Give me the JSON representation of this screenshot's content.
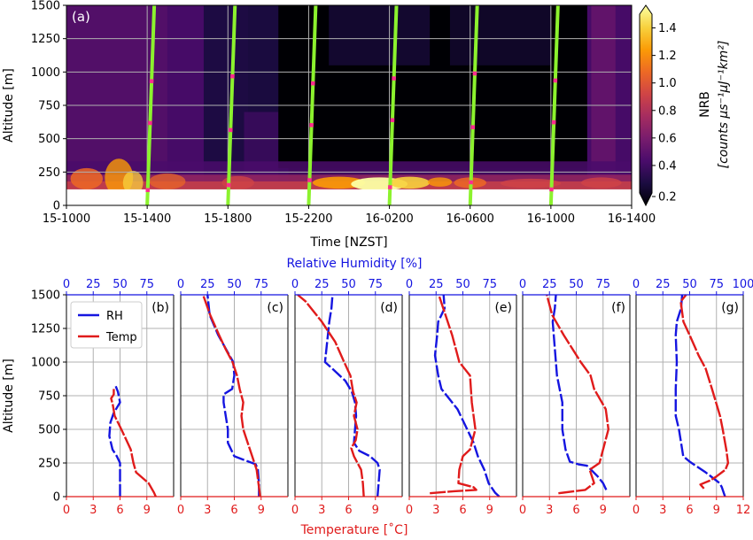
{
  "chart_data": [
    {
      "type": "heatmap",
      "panel_label": "(a)",
      "xlabel": "Time [NZST]",
      "ylabel": "Altitude [m]",
      "x_tick_labels": [
        "15-1000",
        "15-1400",
        "15-1800",
        "15-2200",
        "16-0200",
        "16-0600",
        "16-1000",
        "16-1400"
      ],
      "x_range_hours": [
        0,
        28
      ],
      "y_ticks": [
        0,
        250,
        500,
        750,
        1000,
        1250,
        1500
      ],
      "ylim": [
        0,
        1500
      ],
      "colorbar": {
        "label": "NRB",
        "units": "[counts μs⁻¹μJ⁻¹km²]",
        "ticks": [
          "0.2",
          "0.4",
          "0.6",
          "0.8",
          "1.0",
          "1.2",
          "1.4"
        ],
        "range": [
          0.2,
          1.5
        ],
        "colors": [
          "#000004",
          "#1b0c41",
          "#4a0c6b",
          "#781c6d",
          "#a52c60",
          "#cf4446",
          "#ed6925",
          "#fb9b06",
          "#f7d13d",
          "#fcffa4"
        ]
      },
      "grid": true,
      "radiosonde_launch_hours": [
        4,
        8,
        12,
        16,
        20,
        24
      ],
      "track_colors": {
        "track": "#8cf22e",
        "marker": "#ff2d8f"
      }
    },
    {
      "type": "line",
      "panel_labels": [
        "(b)",
        "(c)",
        "(d)",
        "(e)",
        "(f)",
        "(g)"
      ],
      "top_axis_label": "Relative Humidity [%]",
      "top_axis_color": "#1515e0",
      "bottom_axis_label": "Temperature [˚C]",
      "bottom_axis_color": "#e01b1b",
      "ylabel": "Altitude [m]",
      "y_ticks": [
        0,
        250,
        500,
        750,
        1000,
        1250,
        1500
      ],
      "ylim": [
        0,
        1500
      ],
      "temp_xlim": [
        0,
        12
      ],
      "rh_xlim": [
        0,
        100
      ],
      "temp_tick_labels": [
        [
          "0",
          "3",
          "6",
          "9"
        ],
        [
          "0",
          "3",
          "6",
          "9"
        ],
        [
          "0",
          "3",
          "6",
          "9"
        ],
        [
          "0",
          "3",
          "6",
          "9"
        ],
        [
          "0",
          "3",
          "6",
          "9"
        ],
        [
          "0",
          "3",
          "6",
          "9",
          "12"
        ]
      ],
      "rh_tick_labels": [
        [
          "0",
          "25",
          "50",
          "75"
        ],
        [
          "0",
          "25",
          "50",
          "75"
        ],
        [
          "0",
          "25",
          "50",
          "75"
        ],
        [
          "0",
          "25",
          "50",
          "75"
        ],
        [
          "0",
          "25",
          "50",
          "75"
        ],
        [
          "0",
          "25",
          "50",
          "75",
          "100"
        ]
      ],
      "legend": {
        "position": "top-left",
        "entries": [
          {
            "name": "RH",
            "color": "#1515e0"
          },
          {
            "name": "Temp",
            "color": "#e01b1b"
          }
        ]
      },
      "profiles": [
        {
          "label": "(b)",
          "rh": [
            [
              50,
              0
            ],
            [
              50,
              100
            ],
            [
              50,
              250
            ],
            [
              47,
              300
            ],
            [
              43,
              350
            ],
            [
              40,
              450
            ],
            [
              41,
              550
            ],
            [
              44,
              620
            ],
            [
              50,
              700
            ],
            [
              48,
              780
            ],
            [
              46,
              820
            ]
          ],
          "temp": [
            [
              10,
              0
            ],
            [
              9.8,
              30
            ],
            [
              9.2,
              100
            ],
            [
              7.8,
              180
            ],
            [
              7.5,
              250
            ],
            [
              7.2,
              350
            ],
            [
              6.5,
              450
            ],
            [
              6,
              520
            ],
            [
              5.4,
              600
            ],
            [
              5.2,
              680
            ],
            [
              5,
              730
            ],
            [
              5.3,
              760
            ],
            [
              5.3,
              800
            ]
          ]
        },
        {
          "label": "(c)",
          "rh": [
            [
              73,
              0
            ],
            [
              73,
              100
            ],
            [
              72,
              200
            ],
            [
              70,
              240
            ],
            [
              60,
              270
            ],
            [
              50,
              300
            ],
            [
              44,
              400
            ],
            [
              44,
              500
            ],
            [
              42,
              600
            ],
            [
              40,
              700
            ],
            [
              40,
              760
            ],
            [
              48,
              800
            ],
            [
              50,
              900
            ],
            [
              49,
              1000
            ],
            [
              42,
              1100
            ],
            [
              35,
              1200
            ],
            [
              27,
              1350
            ],
            [
              25,
              1500
            ]
          ],
          "temp": [
            [
              8.9,
              0
            ],
            [
              8.7,
              100
            ],
            [
              8.5,
              200
            ],
            [
              8,
              300
            ],
            [
              7.5,
              400
            ],
            [
              7,
              500
            ],
            [
              6.8,
              600
            ],
            [
              7,
              700
            ],
            [
              6.6,
              800
            ],
            [
              6.3,
              900
            ],
            [
              5.8,
              1000
            ],
            [
              5,
              1100
            ],
            [
              4.3,
              1200
            ],
            [
              3.3,
              1350
            ],
            [
              2.5,
              1500
            ]
          ]
        },
        {
          "label": "(d)",
          "rh": [
            [
              77,
              0
            ],
            [
              78,
              100
            ],
            [
              79,
              200
            ],
            [
              77,
              250
            ],
            [
              70,
              300
            ],
            [
              60,
              340
            ],
            [
              55,
              400
            ],
            [
              56,
              500
            ],
            [
              57,
              600
            ],
            [
              56,
              700
            ],
            [
              53,
              780
            ],
            [
              47,
              860
            ],
            [
              35,
              950
            ],
            [
              28,
              1000
            ],
            [
              30,
              1150
            ],
            [
              32,
              1300
            ],
            [
              34,
              1400
            ],
            [
              35,
              1500
            ]
          ],
          "temp": [
            [
              7.7,
              0
            ],
            [
              7.6,
              100
            ],
            [
              7.4,
              200
            ],
            [
              6.6,
              300
            ],
            [
              6.3,
              360
            ],
            [
              6.8,
              420
            ],
            [
              7,
              500
            ],
            [
              6.6,
              600
            ],
            [
              6.9,
              700
            ],
            [
              6.5,
              780
            ],
            [
              6.2,
              900
            ],
            [
              5.5,
              1000
            ],
            [
              4.5,
              1150
            ],
            [
              3,
              1300
            ],
            [
              1.2,
              1450
            ],
            [
              0.3,
              1500
            ]
          ]
        },
        {
          "label": "(e)",
          "rh": [
            [
              84,
              0
            ],
            [
              80,
              30
            ],
            [
              74,
              100
            ],
            [
              70,
              200
            ],
            [
              64,
              300
            ],
            [
              60,
              400
            ],
            [
              54,
              500
            ],
            [
              45,
              650
            ],
            [
              30,
              800
            ],
            [
              27,
              900
            ],
            [
              24,
              1050
            ],
            [
              26,
              1200
            ],
            [
              27,
              1300
            ],
            [
              33,
              1400
            ],
            [
              32,
              1500
            ]
          ],
          "temp": [
            [
              2.3,
              25
            ],
            [
              5,
              40
            ],
            [
              7.5,
              50
            ],
            [
              7.2,
              70
            ],
            [
              5.5,
              100
            ],
            [
              5.6,
              200
            ],
            [
              6,
              300
            ],
            [
              6.8,
              350
            ],
            [
              7,
              400
            ],
            [
              7.4,
              500
            ],
            [
              7,
              700
            ],
            [
              6.8,
              900
            ],
            [
              5.6,
              1000
            ],
            [
              4.8,
              1200
            ],
            [
              3.3,
              1500
            ]
          ]
        },
        {
          "label": "(f)",
          "rh": [
            [
              78,
              50
            ],
            [
              75,
              100
            ],
            [
              70,
              150
            ],
            [
              60,
              230
            ],
            [
              52,
              240
            ],
            [
              44,
              260
            ],
            [
              40,
              350
            ],
            [
              37,
              500
            ],
            [
              37,
              700
            ],
            [
              32,
              900
            ],
            [
              30,
              1100
            ],
            [
              28,
              1300
            ],
            [
              30,
              1400
            ],
            [
              31,
              1500
            ]
          ],
          "temp": [
            [
              4,
              25
            ],
            [
              7,
              50
            ],
            [
              8,
              100
            ],
            [
              7.5,
              200
            ],
            [
              8.6,
              250
            ],
            [
              9,
              350
            ],
            [
              9.6,
              500
            ],
            [
              9.3,
              650
            ],
            [
              8,
              800
            ],
            [
              7.6,
              900
            ],
            [
              6.5,
              1000
            ],
            [
              4.6,
              1200
            ],
            [
              3.3,
              1350
            ],
            [
              2.7,
              1500
            ]
          ]
        },
        {
          "label": "(g)",
          "rh": [
            [
              83,
              0
            ],
            [
              80,
              70
            ],
            [
              78,
              100
            ],
            [
              65,
              180
            ],
            [
              50,
              260
            ],
            [
              44,
              300
            ],
            [
              40,
              500
            ],
            [
              37,
              600
            ],
            [
              37,
              800
            ],
            [
              38,
              1000
            ],
            [
              37,
              1200
            ],
            [
              38,
              1300
            ],
            [
              42,
              1400
            ],
            [
              43,
              1500
            ]
          ],
          "temp": [
            [
              7.6,
              60
            ],
            [
              7.2,
              90
            ],
            [
              8.3,
              120
            ],
            [
              9,
              150
            ],
            [
              10,
              200
            ],
            [
              10.3,
              250
            ],
            [
              10.1,
              350
            ],
            [
              9.7,
              500
            ],
            [
              9.4,
              600
            ],
            [
              8.5,
              800
            ],
            [
              7.8,
              950
            ],
            [
              7,
              1050
            ],
            [
              6,
              1200
            ],
            [
              5.3,
              1300
            ],
            [
              5,
              1450
            ],
            [
              5.6,
              1500
            ]
          ]
        }
      ]
    }
  ]
}
